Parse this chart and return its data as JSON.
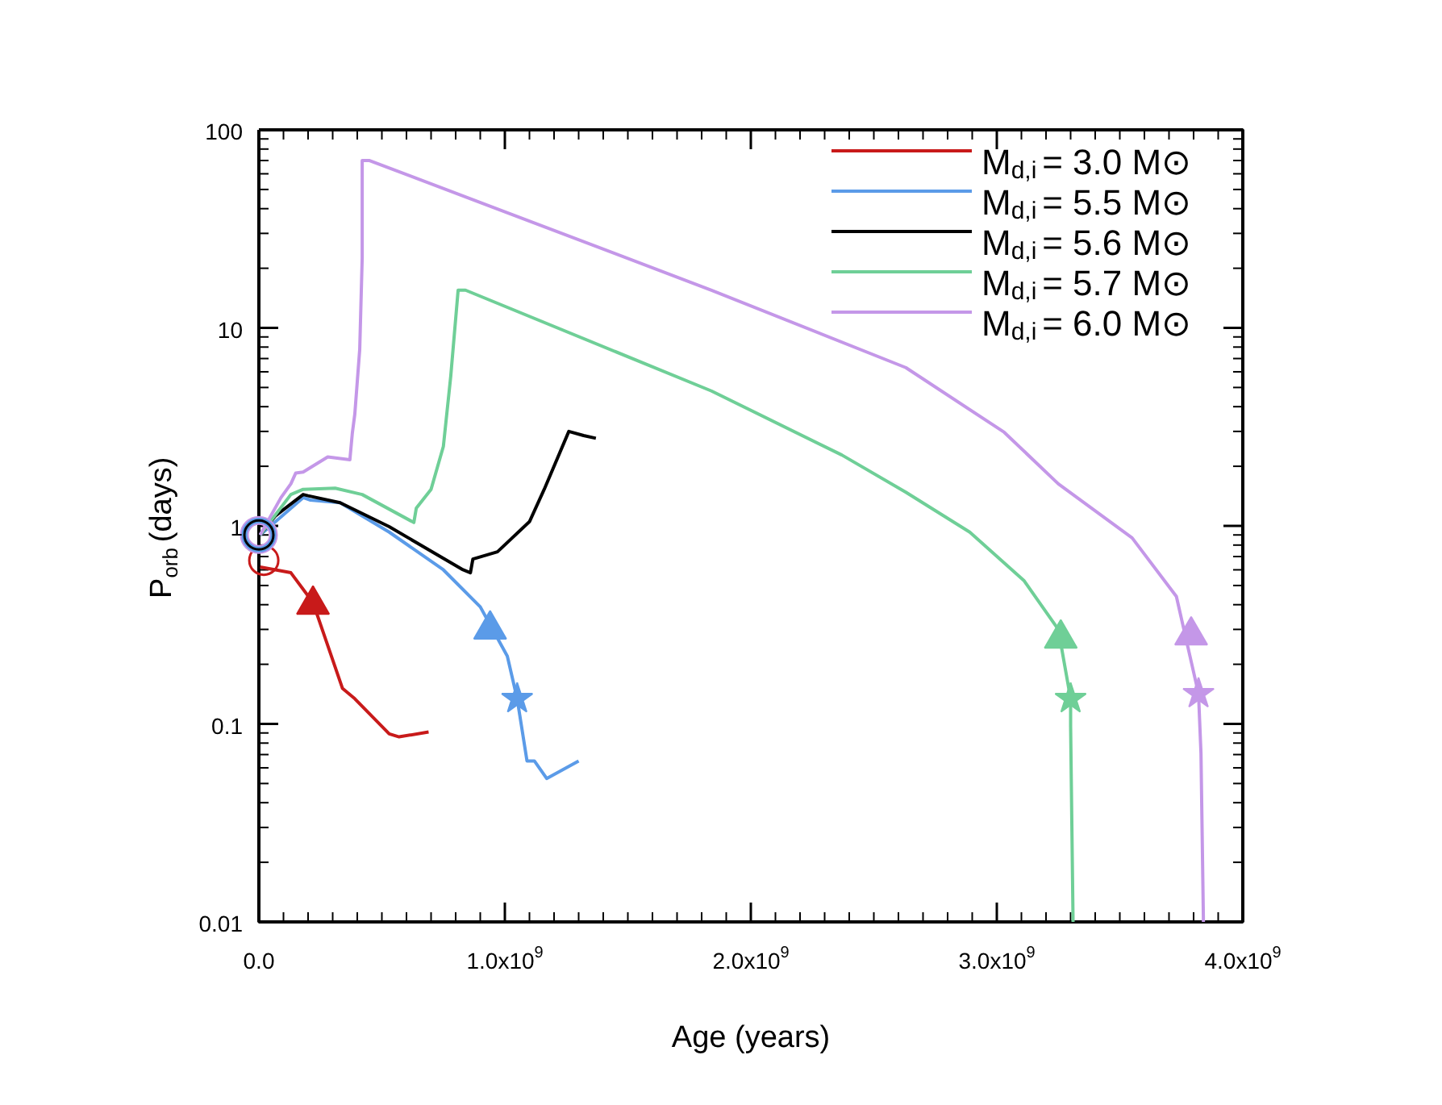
{
  "chart_data": {
    "type": "line",
    "xlabel": "Age (years)",
    "ylabel": "P$_{orb}$ (days)",
    "log": "y",
    "grid": false,
    "legend": "top right",
    "line_style": "solid",
    "marker": "none",
    "xlim": [
      0,
      4000000000.0
    ],
    "xticks": [
      {
        "value": 0,
        "label": "0.0"
      },
      {
        "value": 1000000000.0,
        "label": "1.0x10$^{9}$"
      },
      {
        "value": 2000000000.0,
        "label": "2.0x10$^{9}$"
      },
      {
        "value": 3000000000.0,
        "label": "3.0x10$^{9}$"
      },
      {
        "value": 4000000000.0,
        "label": "4.0x10$^{9}$"
      }
    ],
    "ylim": [
      0.01,
      100
    ],
    "yticks": [
      {
        "value": 0.01,
        "label": "0.01"
      },
      {
        "value": 0.1,
        "label": "0.1"
      },
      {
        "value": 1,
        "label": "1"
      },
      {
        "value": 10,
        "label": "10"
      },
      {
        "value": 100,
        "label": "100"
      }
    ],
    "series": [
      {
        "name": "M$_{d,i}$= 3.0 M⊙",
        "color": "#c81a1a",
        "x": [
          5000000.0,
          130000000.0,
          220000000.0,
          340000000.0,
          390000000.0,
          530000000.0,
          570000000.0,
          690000000.0
        ],
        "values": [
          0.62,
          0.58,
          0.41,
          0.151,
          0.134,
          0.089,
          0.086,
          0.091
        ]
      },
      {
        "name": "M$_{d,i}$= 5.5 M⊙",
        "color": "#5b9be8",
        "x": [
          5000000.0,
          180000000.0,
          210000000.0,
          330000000.0,
          530000000.0,
          750000000.0,
          900000000.0,
          1010000000.0,
          1050000000.0,
          1090000000.0,
          1120000000.0,
          1170000000.0,
          1300000000.0
        ],
        "values": [
          0.9,
          1.39,
          1.35,
          1.31,
          0.93,
          0.6,
          0.39,
          0.22,
          0.134,
          0.065,
          0.065,
          0.053,
          0.065
        ]
      },
      {
        "name": "M$_{d,i}$= 5.6 M⊙",
        "color": "#000000",
        "x": [
          5000000.0,
          66000000.0,
          180000000.0,
          200000000.0,
          330000000.0,
          530000000.0,
          830000000.0,
          860000000.0,
          870000000.0,
          970000000.0,
          1100000000.0,
          1160000000.0,
          1260000000.0,
          1320000000.0,
          1370000000.0
        ],
        "values": [
          0.9,
          1.12,
          1.44,
          1.42,
          1.31,
          0.99,
          0.6,
          0.58,
          0.68,
          0.74,
          1.05,
          1.53,
          3.0,
          2.86,
          2.77
        ]
      },
      {
        "name": "M$_{d,i}$= 5.7 M⊙",
        "color": "#6fcf97",
        "x": [
          5000000.0,
          130000000.0,
          180000000.0,
          310000000.0,
          420000000.0,
          630000000.0,
          640000000.0,
          700000000.0,
          750000000.0,
          780000000.0,
          810000000.0,
          840000000.0,
          1840000000.0,
          2370000000.0,
          2630000000.0,
          2890000000.0,
          3110000000.0,
          3250000000.0,
          3300000000.0,
          3300000000.0,
          3310000000.0
        ],
        "values": [
          0.9,
          1.44,
          1.53,
          1.55,
          1.44,
          1.04,
          1.23,
          1.53,
          2.52,
          5.7,
          15.5,
          15.5,
          4.8,
          2.28,
          1.48,
          0.93,
          0.53,
          0.3,
          0.134,
          0.098,
          0.01
        ]
      },
      {
        "name": "M$_{d,i}$= 6.0 M⊙",
        "color": "#c497e8",
        "x": [
          5000000.0,
          90000000.0,
          130000000.0,
          150000000.0,
          180000000.0,
          280000000.0,
          370000000.0,
          380000000.0,
          390000000.0,
          410000000.0,
          420000000.0,
          420000000.0,
          450000000.0,
          1840000000.0,
          2630000000.0,
          3030000000.0,
          3250000000.0,
          3550000000.0,
          3730000000.0,
          3820000000.0,
          3830000000.0,
          3840000000.0
        ],
        "values": [
          0.9,
          1.39,
          1.63,
          1.85,
          1.87,
          2.23,
          2.16,
          2.95,
          3.67,
          7.8,
          22.5,
          70,
          70,
          15.5,
          6.3,
          2.97,
          1.63,
          0.87,
          0.44,
          0.142,
          0.071,
          0.01
        ]
      },
      {
        "type": "scatter",
        "marker": "circle",
        "color": "#c81a1a",
        "x": [
          20000000.0
        ],
        "values": [
          0.67
        ]
      },
      {
        "type": "scatter",
        "marker": "circle",
        "color": "#c497e8",
        "x": [
          0
        ],
        "values": [
          0.9
        ]
      },
      {
        "type": "scatter",
        "marker": "circle",
        "color": "#5b9be8",
        "x": [
          0
        ],
        "values": [
          0.9
        ]
      },
      {
        "type": "scatter",
        "marker": "circle",
        "color": "#000000",
        "x": [
          0
        ],
        "values": [
          0.9
        ]
      },
      {
        "type": "scatter",
        "marker": "triangle",
        "color": "#c81a1a",
        "x": [
          220000000.0
        ],
        "values": [
          0.4
        ]
      },
      {
        "type": "scatter",
        "marker": "triangle",
        "color": "#5b9be8",
        "x": [
          940000000.0
        ],
        "values": [
          0.3
        ]
      },
      {
        "type": "scatter",
        "marker": "triangle",
        "color": "#6fcf97",
        "x": [
          3260000000.0
        ],
        "values": [
          0.27
        ]
      },
      {
        "type": "scatter",
        "marker": "triangle",
        "color": "#c497e8",
        "x": [
          3790000000.0
        ],
        "values": [
          0.28
        ]
      },
      {
        "type": "scatter",
        "marker": "star",
        "color": "#5b9be8",
        "x": [
          1050000000.0
        ],
        "values": [
          0.134
        ]
      },
      {
        "type": "scatter",
        "marker": "star",
        "color": "#6fcf97",
        "x": [
          3300000000.0
        ],
        "values": [
          0.134
        ]
      },
      {
        "type": "scatter",
        "marker": "star",
        "color": "#c497e8",
        "x": [
          3820000000.0
        ],
        "values": [
          0.142
        ]
      }
    ]
  }
}
